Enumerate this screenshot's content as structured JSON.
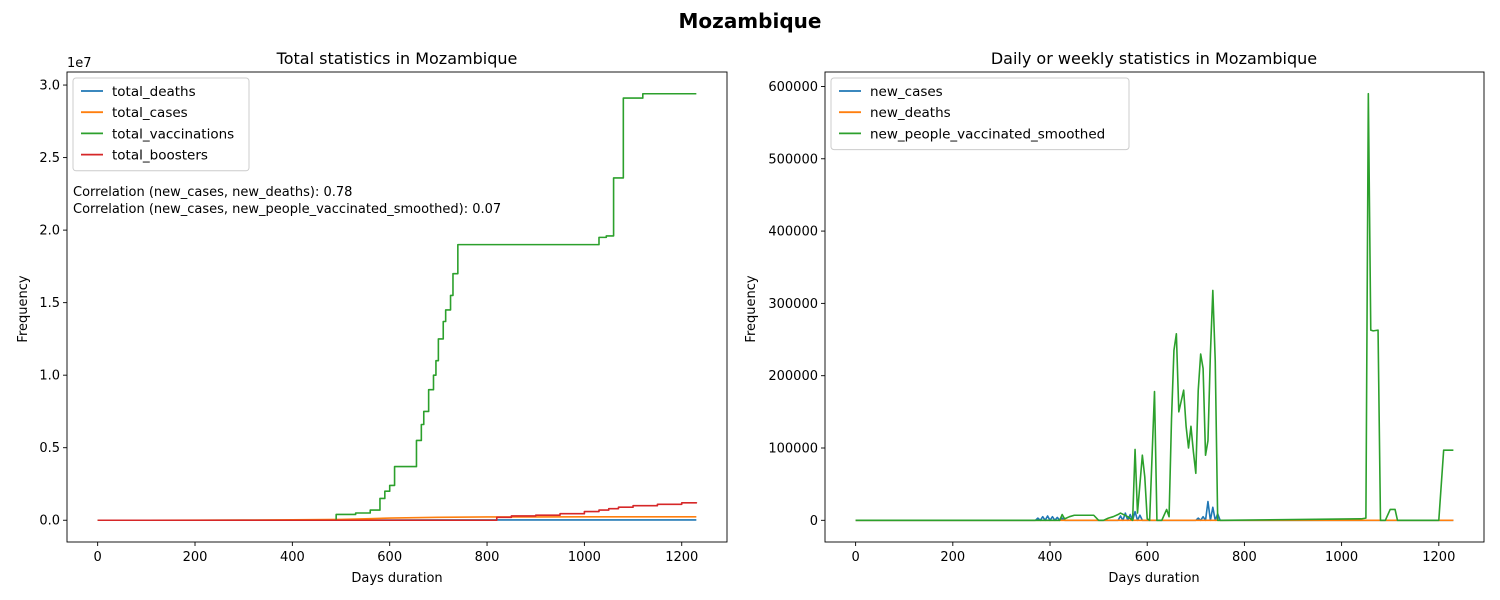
{
  "figure": {
    "title": "Mozambique"
  },
  "chart_data": [
    {
      "type": "line",
      "title": "Total statistics in Mozambique",
      "xlabel": "Days duration",
      "ylabel": "Frequency",
      "y_offset_text": "1e7",
      "y_scale_factor": 10000000,
      "xlim": [
        -63,
        1293
      ],
      "ylim": [
        -1500000,
        30900000
      ],
      "xticks": [
        0,
        200,
        400,
        600,
        800,
        1000,
        1200
      ],
      "yticks": [
        0,
        5000000,
        10000000,
        15000000,
        20000000,
        25000000,
        30000000
      ],
      "ytick_labels": [
        "0.0",
        "0.5",
        "1.0",
        "1.5",
        "2.0",
        "2.5",
        "3.0"
      ],
      "grid": false,
      "legend_position": "upper-left",
      "annotations": [
        "Correlation (new_cases, new_deaths): 0.78",
        "Correlation (new_cases, new_people_vaccinated_smoothed): 0.07"
      ],
      "series": [
        {
          "name": "total_deaths",
          "color": "#1f77b4",
          "step": false,
          "x": [
            0,
            100,
            200,
            300,
            400,
            500,
            600,
            700,
            800,
            1000,
            1230
          ],
          "y": [
            0,
            0,
            0,
            1000,
            5000,
            10000,
            15000,
            20000,
            22000,
            22000,
            22500
          ]
        },
        {
          "name": "total_cases",
          "color": "#ff7f0e",
          "step": false,
          "x": [
            0,
            100,
            200,
            300,
            400,
            500,
            550,
            600,
            700,
            800,
            900,
            1000,
            1230
          ],
          "y": [
            0,
            0,
            2000,
            10000,
            30000,
            60000,
            100000,
            150000,
            200000,
            225000,
            230000,
            233000,
            235000
          ]
        },
        {
          "name": "total_vaccinations",
          "color": "#2ca02c",
          "step": true,
          "x": [
            0,
            490,
            530,
            560,
            580,
            590,
            600,
            610,
            625,
            655,
            665,
            670,
            680,
            690,
            695,
            700,
            710,
            715,
            725,
            730,
            740,
            745,
            1030,
            1045,
            1060,
            1080,
            1120,
            1230
          ],
          "y": [
            0,
            400000,
            500000,
            700000,
            1500000,
            2000000,
            2400000,
            3700000,
            3700000,
            5500000,
            6600000,
            7500000,
            9000000,
            10000000,
            11000000,
            12500000,
            13700000,
            14500000,
            15500000,
            17000000,
            19000000,
            19000000,
            19500000,
            19600000,
            23600000,
            29100000,
            29400000,
            29400000
          ]
        },
        {
          "name": "total_boosters",
          "color": "#d62728",
          "step": true,
          "x": [
            0,
            800,
            820,
            850,
            900,
            950,
            1000,
            1030,
            1050,
            1070,
            1100,
            1150,
            1200,
            1230
          ],
          "y": [
            0,
            0,
            200000,
            300000,
            350000,
            450000,
            600000,
            700000,
            800000,
            900000,
            1000000,
            1100000,
            1200000,
            1250000
          ]
        }
      ]
    },
    {
      "type": "line",
      "title": "Daily or weekly statistics in Mozambique",
      "xlabel": "Days duration",
      "ylabel": "Frequency",
      "xlim": [
        -63,
        1293
      ],
      "ylim": [
        -30000,
        620000
      ],
      "xticks": [
        0,
        200,
        400,
        600,
        800,
        1000,
        1200
      ],
      "yticks": [
        0,
        100000,
        200000,
        300000,
        400000,
        500000,
        600000
      ],
      "ytick_labels": [
        "0",
        "100000",
        "200000",
        "300000",
        "400000",
        "500000",
        "600000"
      ],
      "grid": false,
      "legend_position": "upper-left",
      "series": [
        {
          "name": "new_cases",
          "color": "#1f77b4",
          "step": false,
          "x": [
            0,
            370,
            375,
            380,
            385,
            390,
            395,
            400,
            405,
            410,
            415,
            420,
            425,
            430,
            540,
            545,
            550,
            555,
            560,
            565,
            570,
            575,
            580,
            585,
            590,
            595,
            700,
            705,
            710,
            715,
            720,
            725,
            730,
            735,
            740,
            745,
            750,
            1230
          ],
          "y": [
            0,
            0,
            3000,
            0,
            5000,
            0,
            6000,
            0,
            5000,
            0,
            4000,
            0,
            3000,
            0,
            0,
            6000,
            0,
            10000,
            0,
            8000,
            0,
            12000,
            0,
            7000,
            0,
            0,
            0,
            3000,
            0,
            5000,
            0,
            26000,
            0,
            18000,
            0,
            9000,
            0,
            0
          ]
        },
        {
          "name": "new_deaths",
          "color": "#ff7f0e",
          "step": false,
          "x": [
            0,
            1230
          ],
          "y": [
            0,
            0
          ]
        },
        {
          "name": "new_people_vaccinated_smoothed",
          "color": "#2ca02c",
          "step": false,
          "x": [
            0,
            420,
            425,
            430,
            440,
            450,
            490,
            500,
            510,
            520,
            530,
            540,
            545,
            560,
            570,
            575,
            580,
            590,
            595,
            600,
            605,
            615,
            620,
            625,
            630,
            640,
            645,
            650,
            655,
            660,
            665,
            670,
            675,
            680,
            685,
            690,
            695,
            700,
            705,
            710,
            715,
            720,
            725,
            730,
            735,
            740,
            745,
            750,
            755,
            1040,
            1050,
            1055,
            1060,
            1065,
            1075,
            1080,
            1085,
            1090,
            1100,
            1110,
            1115,
            1120,
            1200,
            1210,
            1230
          ],
          "y": [
            0,
            0,
            8000,
            2000,
            5000,
            7000,
            7000,
            0,
            0,
            3000,
            5000,
            8000,
            10000,
            5000,
            0,
            98000,
            10000,
            90000,
            60000,
            2000,
            0,
            178000,
            0,
            0,
            0,
            15000,
            5000,
            140000,
            235000,
            258000,
            150000,
            165000,
            180000,
            130000,
            100000,
            130000,
            95000,
            65000,
            180000,
            230000,
            210000,
            90000,
            110000,
            230000,
            318000,
            220000,
            0,
            0,
            0,
            2000,
            3000,
            590000,
            263000,
            262000,
            263000,
            0,
            0,
            0,
            15000,
            15000,
            0,
            0,
            0,
            97000,
            97000
          ]
        }
      ]
    }
  ]
}
